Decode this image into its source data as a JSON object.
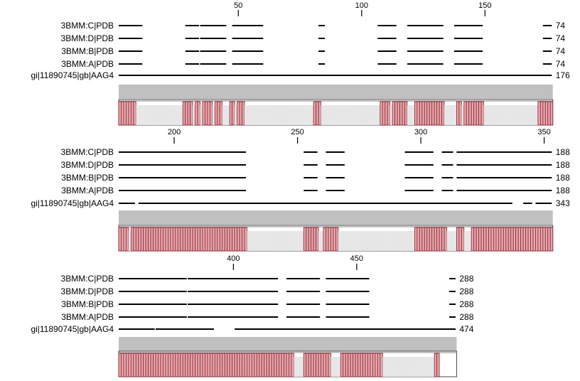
{
  "colors": {
    "background": "#ffffff",
    "line": "#000000",
    "text": "#000000",
    "consensus_bar": "#c0c0c0",
    "conservation_fill": "#e5a9ae",
    "conservation_stroke": "#8b1f2a",
    "conservation_bg": "#e6e6e6"
  },
  "blocks": [
    {
      "ruler": {
        "start": 1,
        "end": 176,
        "ticks": [
          50,
          100,
          150
        ]
      },
      "rows": [
        {
          "label": "3BMM:C|PDB",
          "end": "74",
          "segments": [
            [
              1,
              10
            ],
            [
              28,
              33
            ],
            [
              34,
              44
            ],
            [
              47,
              59
            ],
            [
              82,
              84
            ],
            [
              106,
              113
            ],
            [
              118,
              132
            ],
            [
              137,
              148
            ],
            [
              173,
              176
            ]
          ]
        },
        {
          "label": "3BMM:D|PDB",
          "end": "74",
          "segments": [
            [
              1,
              10
            ],
            [
              28,
              33
            ],
            [
              34,
              44
            ],
            [
              47,
              59
            ],
            [
              82,
              84
            ],
            [
              106,
              113
            ],
            [
              118,
              132
            ],
            [
              137,
              148
            ],
            [
              173,
              176
            ]
          ]
        },
        {
          "label": "3BMM:B|PDB",
          "end": "74",
          "segments": [
            [
              1,
              10
            ],
            [
              28,
              33
            ],
            [
              34,
              44
            ],
            [
              47,
              59
            ],
            [
              82,
              84
            ],
            [
              106,
              113
            ],
            [
              118,
              132
            ],
            [
              137,
              148
            ],
            [
              173,
              176
            ]
          ]
        },
        {
          "label": "3BMM:A|PDB",
          "end": "74",
          "segments": [
            [
              1,
              10
            ],
            [
              28,
              33
            ],
            [
              34,
              44
            ],
            [
              47,
              59
            ],
            [
              82,
              84
            ],
            [
              106,
              113
            ],
            [
              118,
              132
            ],
            [
              137,
              148
            ],
            [
              173,
              176
            ]
          ]
        },
        {
          "label": "gi|11890745|gb|AAG4",
          "end": "176",
          "segments": [
            [
              1,
              176
            ]
          ]
        }
      ],
      "conservation": [
        1,
        1,
        1,
        1,
        1,
        1,
        1,
        0,
        0,
        0,
        0,
        0,
        0,
        0,
        0,
        0,
        0,
        0,
        0,
        0,
        0,
        0,
        0,
        0,
        0,
        0,
        1,
        1,
        1,
        1,
        0,
        1,
        1,
        0,
        1,
        1,
        1,
        1,
        0,
        1,
        1,
        1,
        0,
        0,
        0,
        1,
        1,
        0,
        1,
        1,
        1,
        0,
        0,
        0,
        0,
        0,
        0,
        0,
        0,
        0,
        0,
        0,
        0,
        0,
        0,
        0,
        0,
        0,
        0,
        0,
        0,
        0,
        0,
        0,
        0,
        0,
        0,
        0,
        0,
        1,
        1,
        1,
        0,
        0,
        0,
        0,
        0,
        0,
        0,
        0,
        0,
        0,
        0,
        0,
        0,
        0,
        0,
        0,
        0,
        0,
        0,
        0,
        0,
        0,
        0,
        0,
        1,
        1,
        1,
        1,
        0,
        1,
        1,
        1,
        1,
        1,
        1,
        0,
        0,
        0,
        1,
        1,
        1,
        1,
        1,
        1,
        1,
        1,
        1,
        1,
        1,
        1,
        0,
        0,
        0,
        0,
        0,
        1,
        1,
        0,
        1,
        1,
        1,
        1,
        1,
        1,
        1,
        1,
        0,
        0,
        0,
        0,
        0,
        0,
        0,
        0,
        0,
        0,
        0,
        0,
        0,
        0,
        0,
        0,
        0,
        0,
        0,
        0,
        0,
        0,
        1,
        1,
        1,
        1,
        1,
        1
      ]
    },
    {
      "ruler": {
        "start": 177,
        "end": 352,
        "ticks": [
          200,
          250,
          300,
          350
        ]
      },
      "rows": [
        {
          "label": "3BMM:C|PDB",
          "end": "188",
          "segments": [
            [
              177,
              228
            ],
            [
              252,
              257
            ],
            [
              261,
              268
            ],
            [
              293,
              304
            ],
            [
              308,
              312
            ],
            [
              314,
              352
            ]
          ]
        },
        {
          "label": "3BMM:D|PDB",
          "end": "188",
          "segments": [
            [
              177,
              228
            ],
            [
              252,
              257
            ],
            [
              261,
              268
            ],
            [
              293,
              304
            ],
            [
              308,
              312
            ],
            [
              314,
              352
            ]
          ]
        },
        {
          "label": "3BMM:B|PDB",
          "end": "188",
          "segments": [
            [
              177,
              228
            ],
            [
              252,
              257
            ],
            [
              261,
              268
            ],
            [
              293,
              304
            ],
            [
              308,
              312
            ],
            [
              314,
              352
            ]
          ]
        },
        {
          "label": "3BMM:A|PDB",
          "end": "188",
          "segments": [
            [
              177,
              228
            ],
            [
              252,
              257
            ],
            [
              261,
              268
            ],
            [
              293,
              304
            ],
            [
              308,
              312
            ],
            [
              314,
              352
            ]
          ]
        },
        {
          "label": "gi|11890745|gb|AAG4",
          "end": "343",
          "segments": [
            [
              177,
              183
            ],
            [
              185,
              336
            ],
            [
              341,
              344
            ],
            [
              346,
              352
            ]
          ]
        }
      ],
      "conservation": [
        1,
        1,
        1,
        1,
        0,
        1,
        1,
        1,
        1,
        1,
        1,
        1,
        1,
        1,
        1,
        1,
        1,
        1,
        1,
        1,
        1,
        1,
        1,
        1,
        1,
        1,
        1,
        1,
        1,
        1,
        1,
        1,
        1,
        1,
        1,
        1,
        1,
        1,
        1,
        1,
        1,
        1,
        1,
        1,
        1,
        1,
        1,
        1,
        1,
        1,
        1,
        1,
        0,
        0,
        0,
        0,
        0,
        0,
        0,
        0,
        0,
        0,
        0,
        0,
        0,
        0,
        0,
        0,
        0,
        0,
        0,
        0,
        0,
        0,
        0,
        1,
        1,
        1,
        1,
        1,
        1,
        0,
        0,
        1,
        1,
        1,
        1,
        1,
        1,
        0,
        0,
        0,
        0,
        0,
        0,
        0,
        0,
        0,
        0,
        0,
        0,
        0,
        0,
        0,
        0,
        0,
        0,
        0,
        0,
        0,
        0,
        0,
        0,
        0,
        0,
        0,
        0,
        0,
        0,
        0,
        1,
        1,
        1,
        1,
        1,
        1,
        1,
        1,
        1,
        1,
        1,
        1,
        1,
        0,
        0,
        0,
        0,
        1,
        1,
        1,
        0,
        0,
        0,
        1,
        1,
        1,
        1,
        1,
        1,
        1,
        1,
        1,
        1,
        1,
        1,
        1,
        1,
        1,
        1,
        1,
        1,
        1,
        1,
        1,
        1,
        1,
        1,
        1,
        1,
        1,
        1,
        1,
        1,
        1,
        1,
        1
      ]
    },
    {
      "ruler": {
        "start": 353,
        "end": 489,
        "ticks": [
          400,
          450
        ]
      },
      "rows": [
        {
          "label": "3BMM:C|PDB",
          "end": "288",
          "segments": [
            [
              353,
              380
            ],
            [
              381,
              417
            ],
            [
              421,
              434
            ],
            [
              437,
              454
            ],
            [
              487,
              489
            ]
          ]
        },
        {
          "label": "3BMM:D|PDB",
          "end": "288",
          "segments": [
            [
              353,
              380
            ],
            [
              381,
              417
            ],
            [
              421,
              434
            ],
            [
              437,
              454
            ],
            [
              487,
              489
            ]
          ]
        },
        {
          "label": "3BMM:B|PDB",
          "end": "288",
          "segments": [
            [
              353,
              380
            ],
            [
              381,
              417
            ],
            [
              421,
              434
            ],
            [
              437,
              454
            ],
            [
              487,
              489
            ]
          ]
        },
        {
          "label": "3BMM:A|PDB",
          "end": "288",
          "segments": [
            [
              353,
              380
            ],
            [
              381,
              417
            ],
            [
              421,
              434
            ],
            [
              437,
              454
            ],
            [
              487,
              489
            ]
          ]
        },
        {
          "label": "gi|11890745|gb|AAG4",
          "end": "474",
          "segments": [
            [
              353,
              367
            ],
            [
              368,
              391
            ],
            [
              400,
              489
            ]
          ]
        }
      ],
      "conservation": [
        1,
        1,
        1,
        1,
        1,
        1,
        1,
        1,
        1,
        1,
        1,
        1,
        1,
        1,
        1,
        1,
        1,
        1,
        1,
        1,
        1,
        1,
        1,
        1,
        1,
        1,
        1,
        1,
        1,
        1,
        1,
        1,
        1,
        1,
        1,
        1,
        1,
        1,
        1,
        1,
        1,
        1,
        1,
        1,
        1,
        1,
        1,
        1,
        1,
        1,
        1,
        1,
        1,
        1,
        1,
        1,
        1,
        1,
        1,
        1,
        1,
        1,
        1,
        1,
        1,
        1,
        1,
        1,
        1,
        1,
        1,
        0,
        0,
        0,
        0,
        1,
        1,
        1,
        1,
        1,
        1,
        1,
        1,
        1,
        1,
        1,
        0,
        0,
        0,
        0,
        1,
        1,
        1,
        1,
        1,
        1,
        1,
        1,
        1,
        1,
        1,
        1,
        1,
        1,
        1,
        1,
        1,
        0,
        0,
        0,
        0,
        0,
        0,
        0,
        0,
        0,
        0,
        0,
        0,
        0,
        0,
        0,
        0,
        0,
        0,
        0,
        0,
        0,
        1,
        1
      ]
    }
  ]
}
